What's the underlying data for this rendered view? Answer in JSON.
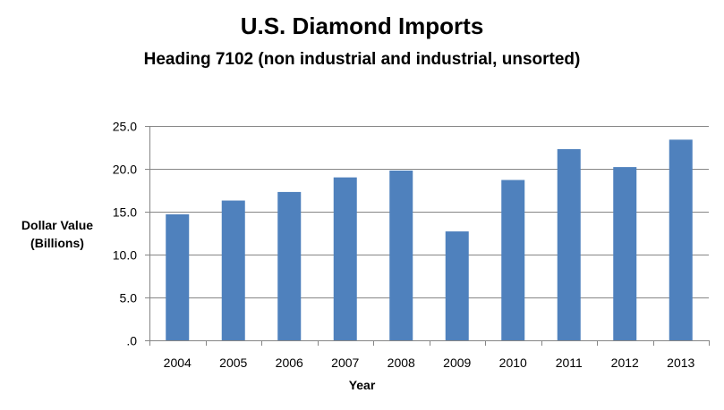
{
  "chart_data": {
    "type": "bar",
    "title": "U.S. Diamond Imports",
    "subtitle": "Heading 7102 (non industrial and industrial, unsorted)",
    "xlabel": "Year",
    "ylabel_lines": [
      "Dollar Value",
      "(Billions)"
    ],
    "categories": [
      "2004",
      "2005",
      "2006",
      "2007",
      "2008",
      "2009",
      "2010",
      "2011",
      "2012",
      "2013"
    ],
    "values": [
      14.7,
      16.3,
      17.3,
      19.0,
      19.8,
      12.7,
      18.7,
      22.3,
      20.2,
      23.4
    ],
    "ylim": [
      0,
      25
    ],
    "yticks": [
      ".0",
      "5.0",
      "10.0",
      "15.0",
      "20.0",
      "25.0"
    ],
    "ytick_values": [
      0,
      5,
      10,
      15,
      20,
      25
    ],
    "grid": true,
    "legend": "none",
    "bar_color": "#4F81BD",
    "grid_color": "#868686"
  }
}
